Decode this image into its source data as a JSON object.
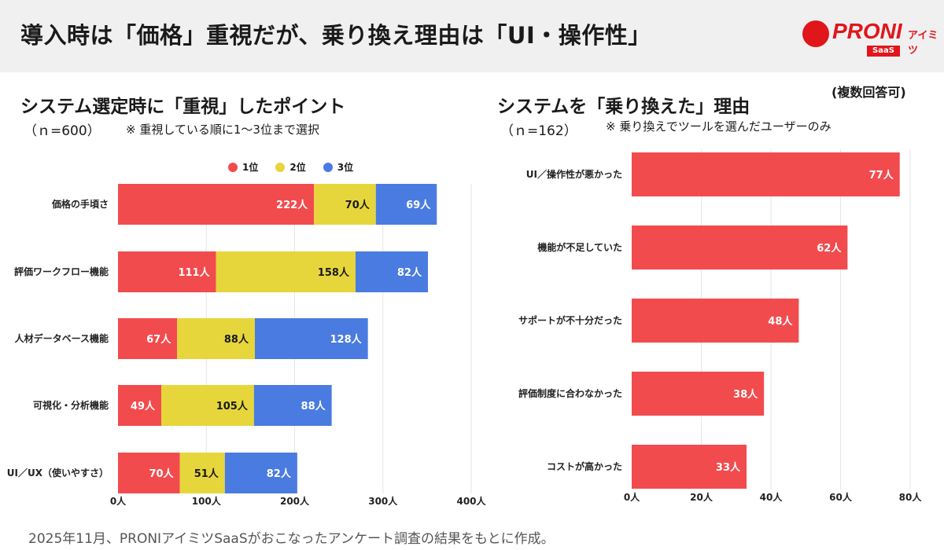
{
  "header": {
    "title": "導入時は「価格」重視だが、乗り換え理由は「UI・操作性」",
    "logo_text": "PRONI",
    "logo_kana": "アイミツ",
    "logo_badge": "SaaS"
  },
  "colors": {
    "first": "#f24b4e",
    "second": "#e6d63b",
    "third": "#4a7be0",
    "bar": "#f24b4e"
  },
  "chart_data": [
    {
      "type": "bar",
      "stacked": true,
      "orientation": "horizontal",
      "title": "システム選定時に「重視」したポイント",
      "sample": "（ｎ=600）",
      "note": "※ 重視している順に1〜3位まで選択",
      "categories": [
        "価格の手頃さ",
        "評価ワークフロー機能",
        "人材データベース機能",
        "可視化・分析機能",
        "UI／UX（使いやすさ）"
      ],
      "series": [
        {
          "name": "1位",
          "values": [
            222,
            111,
            67,
            49,
            70
          ]
        },
        {
          "name": "2位",
          "values": [
            70,
            158,
            88,
            105,
            51
          ]
        },
        {
          "name": "3位",
          "values": [
            69,
            82,
            128,
            88,
            82
          ]
        }
      ],
      "unit": "人",
      "xlim": [
        0,
        400
      ],
      "xticks": [
        0,
        100,
        200,
        300,
        400
      ],
      "grid": true,
      "legend": "top"
    },
    {
      "type": "bar",
      "orientation": "horizontal",
      "title": "システムを「乗り換えた」理由",
      "sample": "（ｎ=162）",
      "note": "※ 乗り換えでツールを選んだユーザーのみ",
      "multi": "(複数回答可)",
      "categories": [
        "UI／操作性が悪かった",
        "機能が不足していた",
        "サポートが不十分だった",
        "評価制度に合わなかった",
        "コストが高かった"
      ],
      "values": [
        77,
        62,
        48,
        38,
        33
      ],
      "unit": "人",
      "xlim": [
        0,
        80
      ],
      "xticks": [
        0,
        20,
        40,
        60,
        80
      ],
      "grid": true
    }
  ],
  "footer": "2025年11月、PRONIアイミツSaaSがおこなったアンケート調査の結果をもとに作成。"
}
